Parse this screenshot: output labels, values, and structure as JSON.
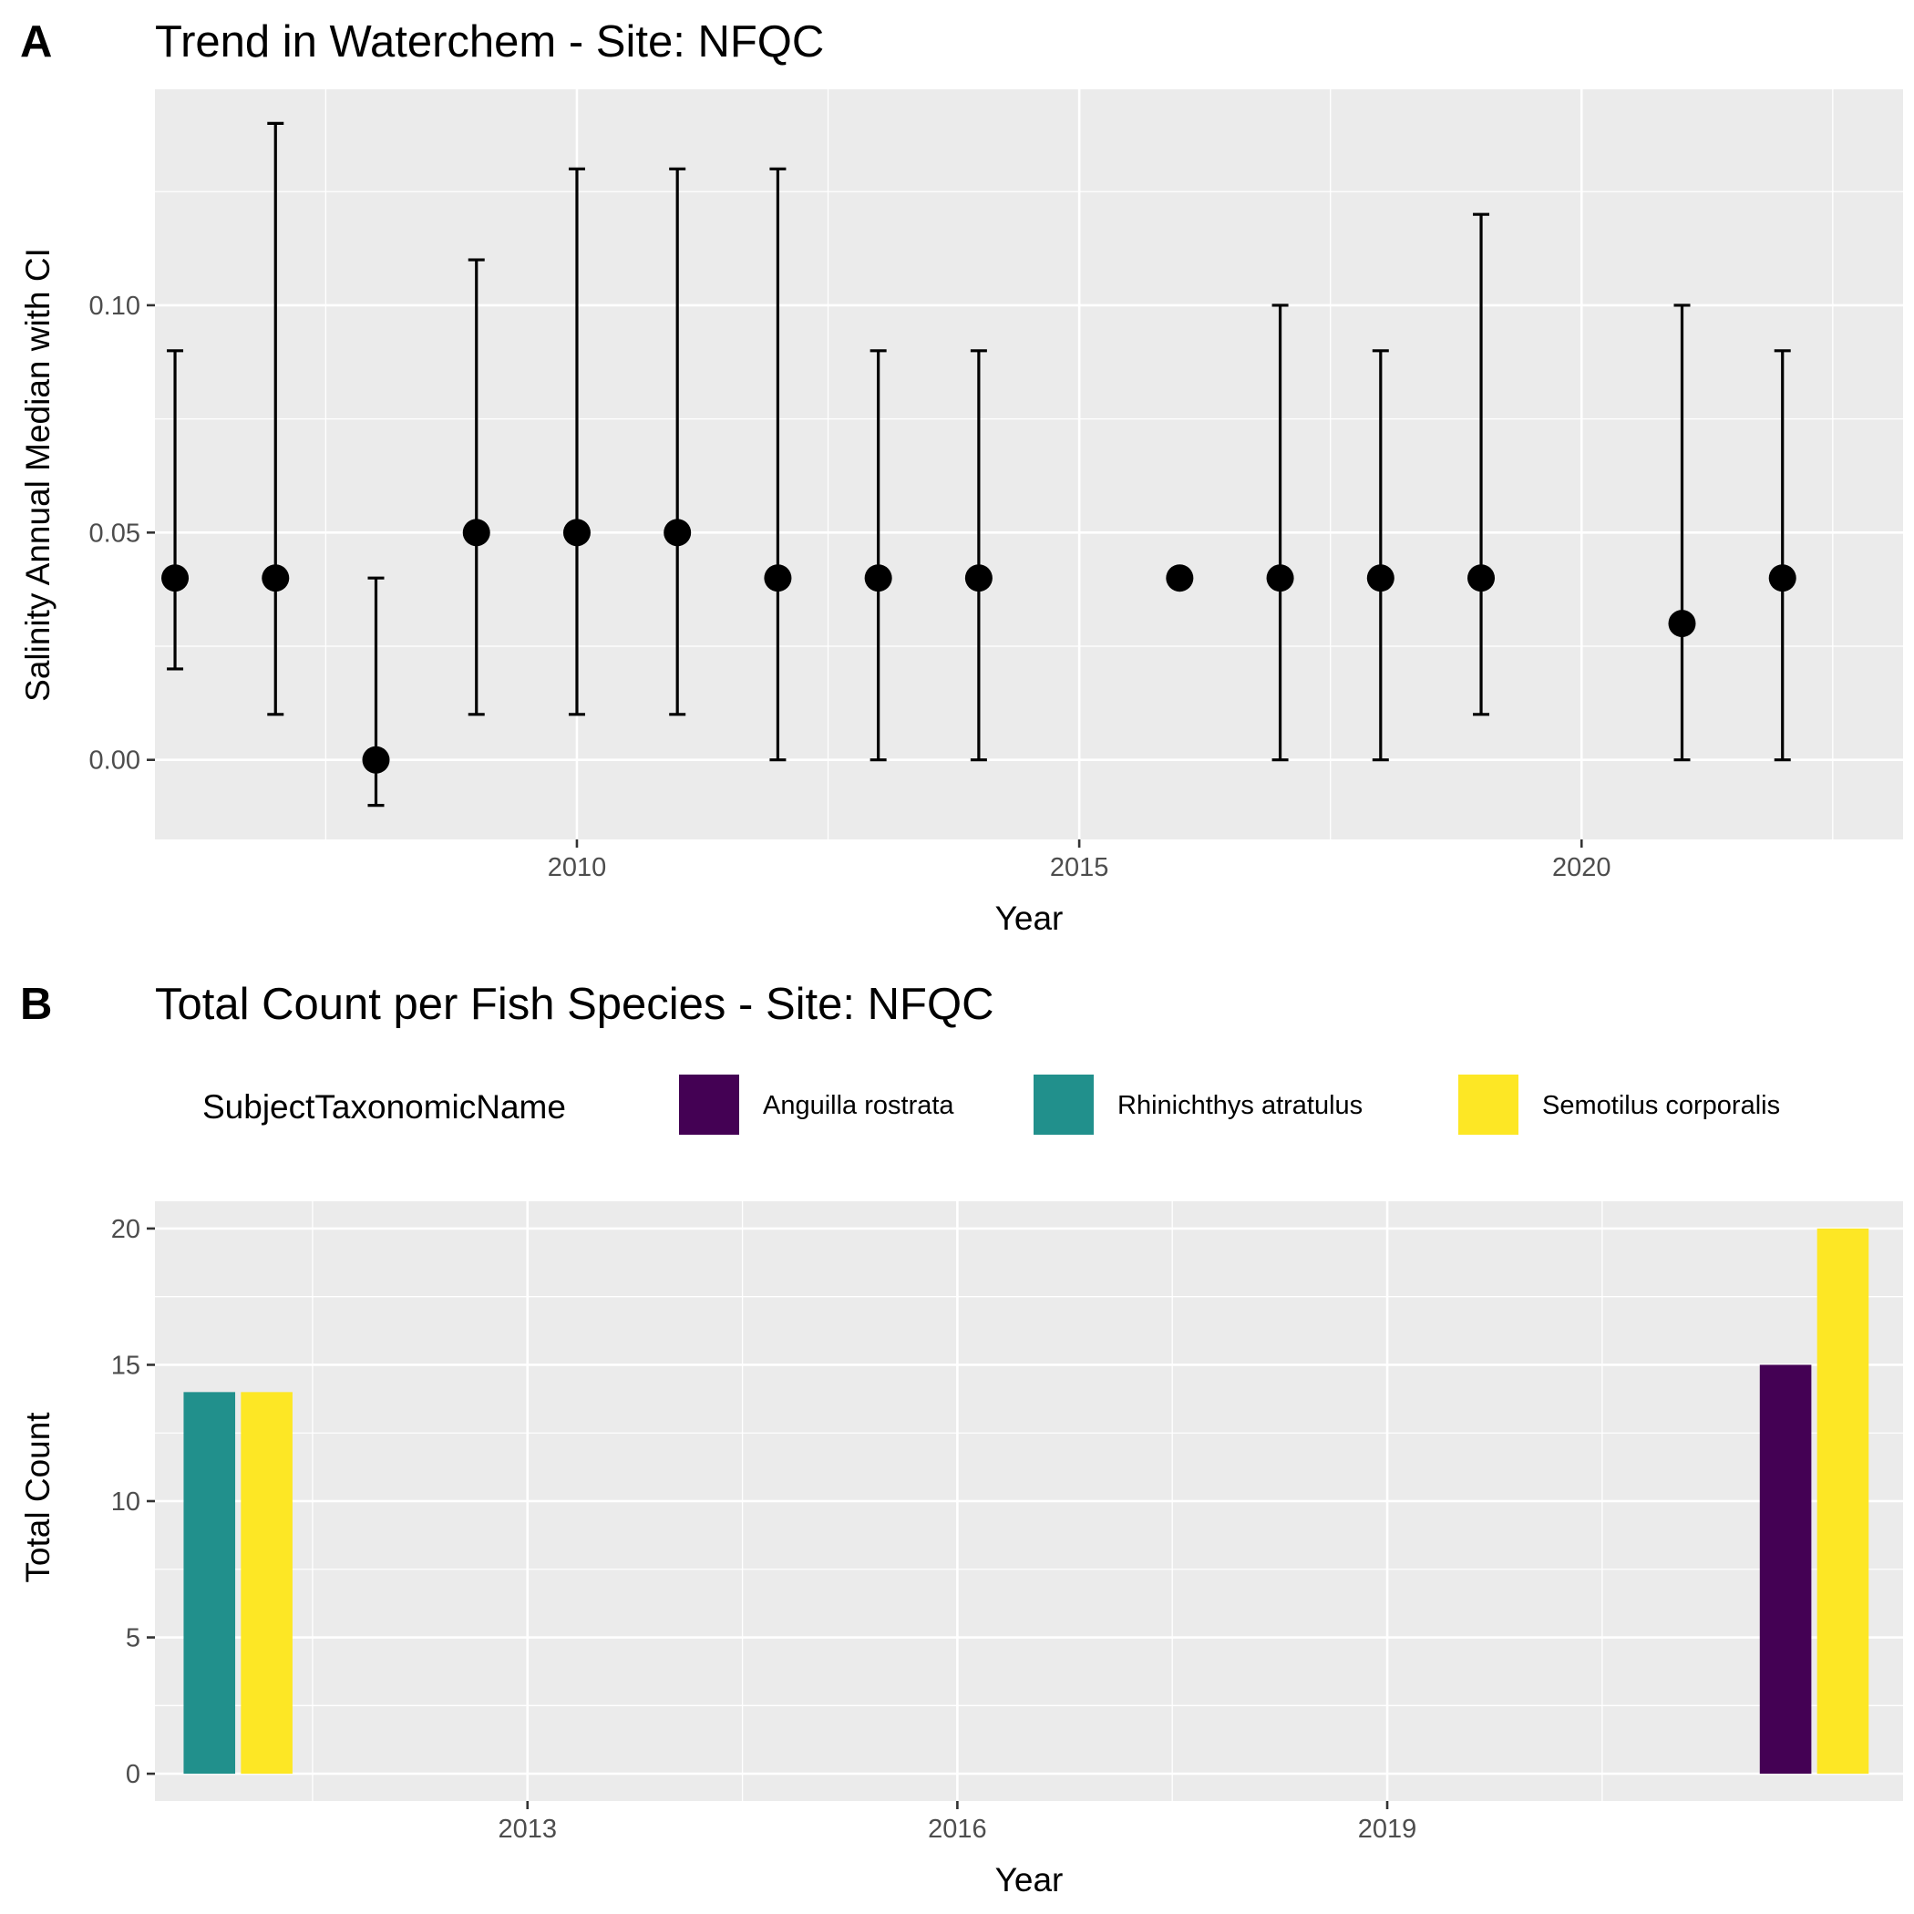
{
  "chart_data": [
    {
      "type": "scatter",
      "tag": "A",
      "title": "Trend in Waterchem - Site: NFQC",
      "xlabel": "Year",
      "ylabel": "Salinity Annual Median with CI",
      "xlim": [
        2005.8,
        2023.2
      ],
      "ylim": [
        -0.0175,
        0.1475
      ],
      "x_ticks": [
        2010,
        2015,
        2020
      ],
      "x_tick_labels": [
        "2010",
        "2015",
        "2020"
      ],
      "x_minor_ticks": [
        2007.5,
        2012.5,
        2017.5,
        2022.5
      ],
      "y_ticks": [
        0.0,
        0.05,
        0.1
      ],
      "y_tick_labels": [
        "0.00",
        "0.05",
        "0.10"
      ],
      "y_minor_ticks": [
        0.025,
        0.075,
        0.125
      ],
      "grid": true,
      "points": [
        {
          "x": 2006,
          "y": 0.04,
          "ymin": 0.02,
          "ymax": 0.09
        },
        {
          "x": 2007,
          "y": 0.04,
          "ymin": 0.01,
          "ymax": 0.14
        },
        {
          "x": 2008,
          "y": 0.0,
          "ymin": -0.01,
          "ymax": 0.04
        },
        {
          "x": 2009,
          "y": 0.05,
          "ymin": 0.01,
          "ymax": 0.11
        },
        {
          "x": 2010,
          "y": 0.05,
          "ymin": 0.01,
          "ymax": 0.13
        },
        {
          "x": 2011,
          "y": 0.05,
          "ymin": 0.01,
          "ymax": 0.13
        },
        {
          "x": 2012,
          "y": 0.04,
          "ymin": 0.0,
          "ymax": 0.13
        },
        {
          "x": 2013,
          "y": 0.04,
          "ymin": 0.0,
          "ymax": 0.09
        },
        {
          "x": 2014,
          "y": 0.04,
          "ymin": 0.0,
          "ymax": 0.09
        },
        {
          "x": 2016,
          "y": 0.04
        },
        {
          "x": 2017,
          "y": 0.04,
          "ymin": 0.0,
          "ymax": 0.1
        },
        {
          "x": 2018,
          "y": 0.04,
          "ymin": 0.0,
          "ymax": 0.09
        },
        {
          "x": 2019,
          "y": 0.04,
          "ymin": 0.01,
          "ymax": 0.12
        },
        {
          "x": 2021,
          "y": 0.03,
          "ymin": 0.0,
          "ymax": 0.1
        },
        {
          "x": 2022,
          "y": 0.04,
          "ymin": 0.0,
          "ymax": 0.09
        }
      ]
    },
    {
      "type": "bar",
      "tag": "B",
      "title": "Total Count per Fish Species - Site: NFQC",
      "xlabel": "Year",
      "ylabel": "Total Count",
      "xlim": [
        2010.4,
        2022.6
      ],
      "ylim": [
        -1,
        21
      ],
      "x_ticks": [
        2013,
        2016,
        2019
      ],
      "x_tick_labels": [
        "2013",
        "2016",
        "2019"
      ],
      "x_minor_ticks": [
        2011.5,
        2014.5,
        2017.5,
        2020.5
      ],
      "y_ticks": [
        0,
        5,
        10,
        15,
        20
      ],
      "y_tick_labels": [
        "0",
        "5",
        "10",
        "15",
        "20"
      ],
      "y_minor_ticks": [
        2.5,
        7.5,
        12.5,
        17.5
      ],
      "grid": true,
      "legend": {
        "title": "SubjectTaxonomicName",
        "position": "top",
        "entries": [
          {
            "label": "Anguilla rostrata",
            "color": "#440154"
          },
          {
            "label": "Rhinichthys atratulus",
            "color": "#21908C"
          },
          {
            "label": "Semotilus corporalis",
            "color": "#FDE725"
          }
        ]
      },
      "bar_width": 0.75,
      "bars": [
        {
          "x": 2011,
          "series": "Rhinichthys atratulus",
          "value": 14,
          "color": "#21908C",
          "x_start": 2010.6,
          "x_end": 2010.96
        },
        {
          "x": 2011,
          "series": "Semotilus corporalis",
          "value": 14,
          "color": "#FDE725",
          "x_start": 2011.0,
          "x_end": 2011.36
        },
        {
          "x": 2022,
          "series": "Anguilla rostrata",
          "value": 15,
          "color": "#440154",
          "x_start": 2021.6,
          "x_end": 2021.96
        },
        {
          "x": 2022,
          "series": "Semotilus corporalis",
          "value": 20,
          "color": "#FDE725",
          "x_start": 2022.0,
          "x_end": 2022.36
        }
      ]
    }
  ]
}
